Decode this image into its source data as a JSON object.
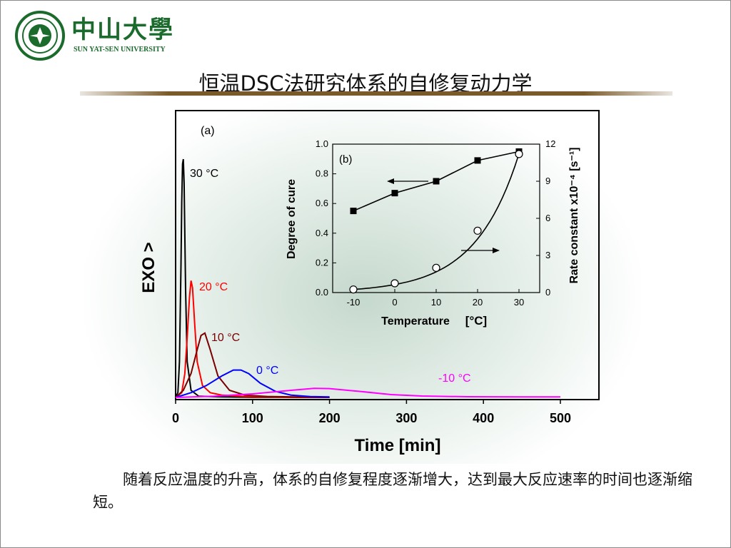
{
  "logo": {
    "cn": "中山大學",
    "en": "SUN YAT-SEN UNIVERSITY"
  },
  "title": "恒温DSC法研究体系的自修复动力学",
  "caption": "随着反应温度的升高，体系的自修复程度逐渐增大，达到最大反应速率的时间也逐渐缩短。",
  "chart_data": [
    {
      "type": "line",
      "panel_label": "(a)",
      "xlabel": "Time [min]",
      "ylabel": "EXO >",
      "xlim": [
        0,
        500
      ],
      "xticks": [
        "0",
        "100",
        "200",
        "300",
        "400",
        "500"
      ],
      "series": [
        {
          "name": "30 °C",
          "color": "#000000",
          "x": [
            0,
            3,
            5,
            7,
            8,
            9,
            10,
            11,
            13,
            15,
            20,
            30,
            60,
            100,
            200
          ],
          "y": [
            0,
            0.02,
            0.15,
            0.55,
            0.82,
            0.98,
            1.0,
            0.9,
            0.45,
            0.15,
            0.03,
            0.005,
            0.002,
            0.001,
            0.0
          ]
        },
        {
          "name": "20 °C",
          "color": "#ff0000",
          "x": [
            0,
            8,
            12,
            15,
            18,
            20,
            22,
            25,
            28,
            35,
            45,
            60,
            90,
            150,
            200
          ],
          "y": [
            0,
            0.02,
            0.1,
            0.25,
            0.42,
            0.49,
            0.46,
            0.3,
            0.15,
            0.05,
            0.02,
            0.01,
            0.004,
            0.001,
            0.0
          ]
        },
        {
          "name": "10 °C",
          "color": "#7a0000",
          "x": [
            0,
            10,
            20,
            28,
            33,
            38,
            45,
            55,
            70,
            90,
            120,
            200
          ],
          "y": [
            0,
            0.03,
            0.1,
            0.2,
            0.26,
            0.27,
            0.2,
            0.09,
            0.03,
            0.01,
            0.004,
            0.0
          ]
        },
        {
          "name": "0 °C",
          "color": "#0000ff",
          "x": [
            0,
            20,
            40,
            60,
            75,
            85,
            95,
            110,
            130,
            150,
            175,
            200
          ],
          "y": [
            0,
            0.02,
            0.05,
            0.09,
            0.115,
            0.115,
            0.1,
            0.06,
            0.025,
            0.01,
            0.004,
            0.002
          ]
        },
        {
          "name": "-10 °C",
          "color": "#ff00ff",
          "x": [
            0,
            50,
            100,
            150,
            180,
            200,
            240,
            280,
            320,
            380,
            450,
            500
          ],
          "y": [
            0,
            0.005,
            0.015,
            0.03,
            0.038,
            0.037,
            0.025,
            0.012,
            0.006,
            0.003,
            0.002,
            0.002
          ]
        }
      ]
    },
    {
      "type": "line",
      "panel_label": "(b)",
      "xlabel": "Temperature",
      "xunit": "°C",
      "ylabel_left": "Degree of cure",
      "ylabel_right": "Rate constant x10⁻⁴ [s⁻¹]",
      "xlim": [
        -15,
        35
      ],
      "ylim_left": [
        0.0,
        1.0
      ],
      "ylim_right": [
        0,
        12
      ],
      "xticks": [
        "-10",
        "0",
        "10",
        "20",
        "30"
      ],
      "yticks_left": [
        "0.0",
        "0.2",
        "0.4",
        "0.6",
        "0.8",
        "1.0"
      ],
      "yticks_right": [
        "0",
        "3",
        "6",
        "9",
        "12"
      ],
      "series": [
        {
          "name": "Degree of cure",
          "axis": "left",
          "marker": "filled-square",
          "x": [
            -10,
            0,
            10,
            20,
            30
          ],
          "y": [
            0.55,
            0.67,
            0.75,
            0.89,
            0.95
          ]
        },
        {
          "name": "Rate constant",
          "axis": "right",
          "marker": "open-circle",
          "x": [
            -10,
            0,
            10,
            20,
            30
          ],
          "y": [
            0.25,
            0.75,
            2.0,
            5.0,
            11.2
          ]
        }
      ]
    }
  ]
}
